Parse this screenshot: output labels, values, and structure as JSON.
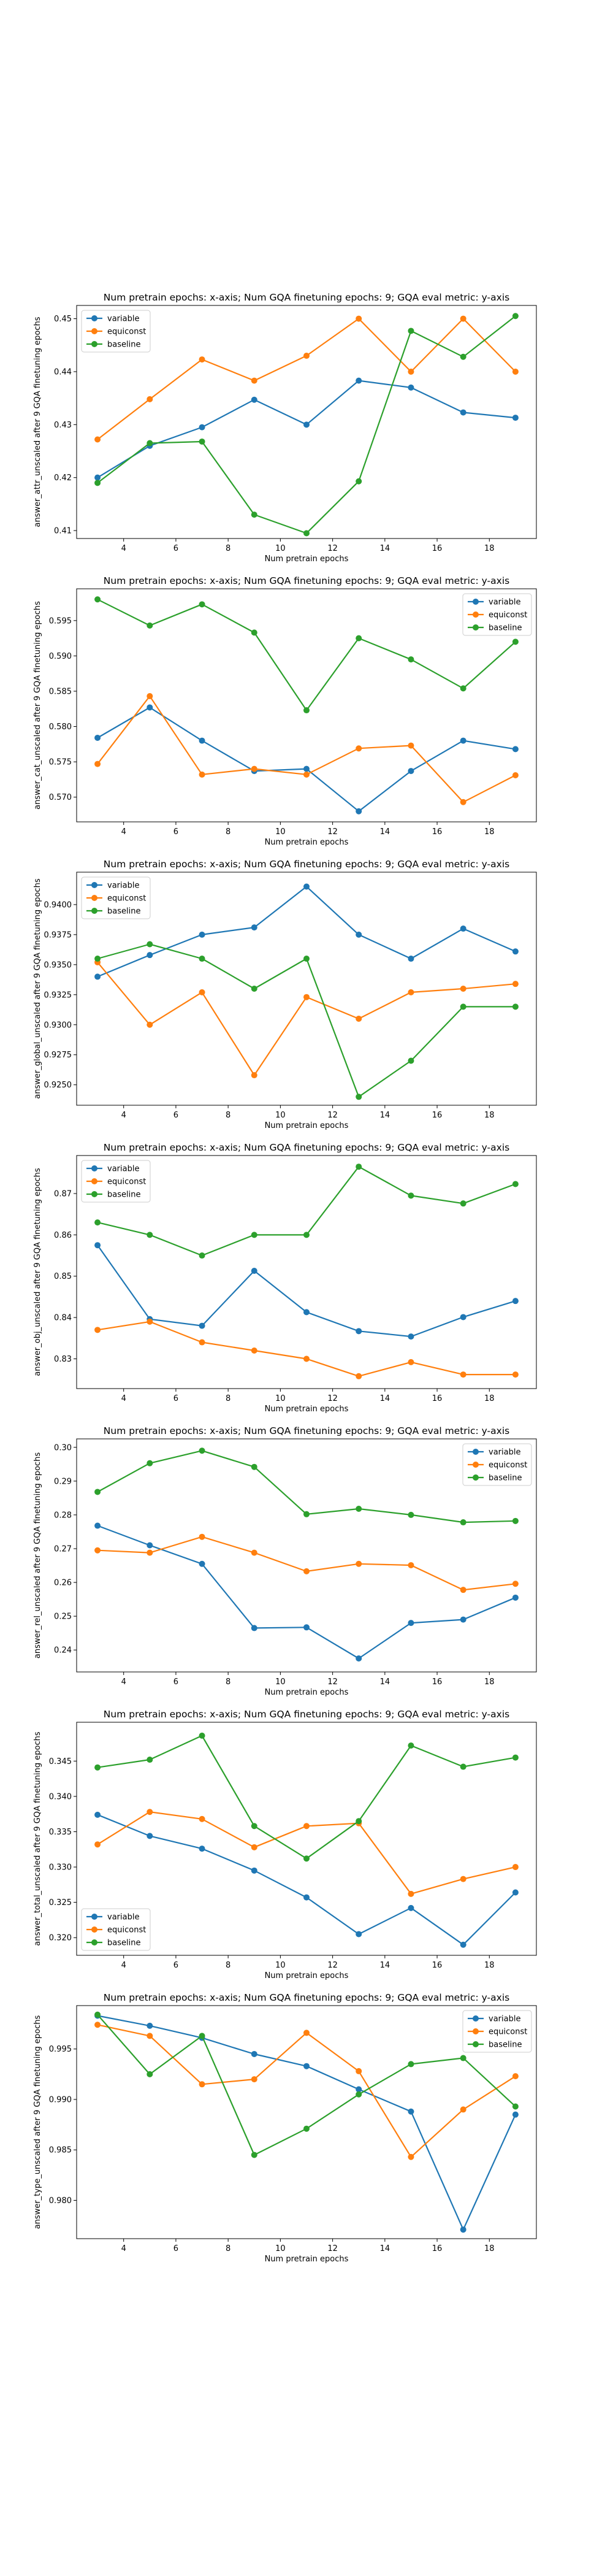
{
  "figure": {
    "background": "#ffffff"
  },
  "chart_data": [
    {
      "type": "line",
      "title": "Num pretrain epochs: x-axis; Num GQA finetuning epochs: 9; GQA eval metric: y-axis",
      "xlabel": "Num pretrain epochs",
      "ylabel": "answer_attr_unscaled after 9 GQA finetuning epochs",
      "x": [
        3,
        5,
        7,
        9,
        11,
        13,
        15,
        17,
        19
      ],
      "xlim": [
        2.2,
        19.8
      ],
      "ylim": [
        0.4085,
        0.4525
      ],
      "xticks": [
        4,
        6,
        8,
        10,
        12,
        14,
        16,
        18
      ],
      "yticks": [
        0.41,
        0.42,
        0.43,
        0.44,
        0.45
      ],
      "ytick_labels": [
        "0.41",
        "0.42",
        "0.43",
        "0.44",
        "0.45"
      ],
      "legend_loc": "upper-left",
      "series": [
        {
          "name": "variable",
          "color": "#1f77b4",
          "values": [
            0.42,
            0.426,
            0.4295,
            0.4347,
            0.43,
            0.4383,
            0.437,
            0.4323,
            0.4313
          ]
        },
        {
          "name": "equiconst",
          "color": "#ff7f0e",
          "values": [
            0.4272,
            0.4348,
            0.4423,
            0.4383,
            0.443,
            0.45,
            0.44,
            0.45,
            0.44
          ]
        },
        {
          "name": "baseline",
          "color": "#2ca02c",
          "values": [
            0.419,
            0.4265,
            0.4268,
            0.413,
            0.4095,
            0.4193,
            0.4477,
            0.4428,
            0.4505
          ]
        }
      ]
    },
    {
      "type": "line",
      "title": "Num pretrain epochs: x-axis; Num GQA finetuning epochs: 9; GQA eval metric: y-axis",
      "xlabel": "Num pretrain epochs",
      "ylabel": "answer_cat_unscaled after 9 GQA finetuning epochs",
      "x": [
        3,
        5,
        7,
        9,
        11,
        13,
        15,
        17,
        19
      ],
      "xlim": [
        2.2,
        19.8
      ],
      "ylim": [
        0.5665,
        0.5995
      ],
      "xticks": [
        4,
        6,
        8,
        10,
        12,
        14,
        16,
        18
      ],
      "yticks": [
        0.57,
        0.575,
        0.58,
        0.585,
        0.59,
        0.595
      ],
      "ytick_labels": [
        "0.570",
        "0.575",
        "0.580",
        "0.585",
        "0.590",
        "0.595"
      ],
      "legend_loc": "upper-right",
      "series": [
        {
          "name": "variable",
          "color": "#1f77b4",
          "values": [
            0.5784,
            0.5827,
            0.578,
            0.5737,
            0.574,
            0.568,
            0.5737,
            0.578,
            0.5768
          ]
        },
        {
          "name": "equiconst",
          "color": "#ff7f0e",
          "values": [
            0.5747,
            0.5843,
            0.5732,
            0.574,
            0.5732,
            0.5769,
            0.5773,
            0.5693,
            0.5731
          ]
        },
        {
          "name": "baseline",
          "color": "#2ca02c",
          "values": [
            0.598,
            0.5943,
            0.5973,
            0.5933,
            0.5823,
            0.5925,
            0.5895,
            0.5854,
            0.592
          ]
        }
      ]
    },
    {
      "type": "line",
      "title": "Num pretrain epochs: x-axis; Num GQA finetuning epochs: 9; GQA eval metric: y-axis",
      "xlabel": "Num pretrain epochs",
      "ylabel": "answer_global_unscaled after 9 GQA finetuning epochs",
      "x": [
        3,
        5,
        7,
        9,
        11,
        13,
        15,
        17,
        19
      ],
      "xlim": [
        2.2,
        19.8
      ],
      "ylim": [
        0.9233,
        0.9427
      ],
      "xticks": [
        4,
        6,
        8,
        10,
        12,
        14,
        16,
        18
      ],
      "yticks": [
        0.925,
        0.9275,
        0.93,
        0.9325,
        0.935,
        0.9375,
        0.94
      ],
      "ytick_labels": [
        "0.9250",
        "0.9275",
        "0.9300",
        "0.9325",
        "0.9350",
        "0.9375",
        "0.9400"
      ],
      "legend_loc": "upper-left",
      "series": [
        {
          "name": "variable",
          "color": "#1f77b4",
          "values": [
            0.934,
            0.9358,
            0.9375,
            0.9381,
            0.9415,
            0.9375,
            0.9355,
            0.938,
            0.9361
          ]
        },
        {
          "name": "equiconst",
          "color": "#ff7f0e",
          "values": [
            0.9352,
            0.93,
            0.9327,
            0.9258,
            0.9323,
            0.9305,
            0.9327,
            0.933,
            0.9334
          ]
        },
        {
          "name": "baseline",
          "color": "#2ca02c",
          "values": [
            0.9355,
            0.9367,
            0.9355,
            0.933,
            0.9355,
            0.924,
            0.927,
            0.9315,
            0.9315
          ]
        }
      ]
    },
    {
      "type": "line",
      "title": "Num pretrain epochs: x-axis; Num GQA finetuning epochs: 9; GQA eval metric: y-axis",
      "xlabel": "Num pretrain epochs",
      "ylabel": "answer_obj_unscaled after 9 GQA finetuning epochs",
      "x": [
        3,
        5,
        7,
        9,
        11,
        13,
        15,
        17,
        19
      ],
      "xlim": [
        2.2,
        19.8
      ],
      "ylim": [
        0.8228,
        0.8792
      ],
      "xticks": [
        4,
        6,
        8,
        10,
        12,
        14,
        16,
        18
      ],
      "yticks": [
        0.83,
        0.84,
        0.85,
        0.86,
        0.87
      ],
      "ytick_labels": [
        "0.83",
        "0.84",
        "0.85",
        "0.86",
        "0.87"
      ],
      "legend_loc": "upper-left",
      "series": [
        {
          "name": "variable",
          "color": "#1f77b4",
          "values": [
            0.8575,
            0.8396,
            0.838,
            0.8513,
            0.8413,
            0.8367,
            0.8354,
            0.8401,
            0.844
          ]
        },
        {
          "name": "equiconst",
          "color": "#ff7f0e",
          "values": [
            0.837,
            0.839,
            0.834,
            0.832,
            0.83,
            0.8258,
            0.8292,
            0.8262,
            0.8262
          ]
        },
        {
          "name": "baseline",
          "color": "#2ca02c",
          "values": [
            0.863,
            0.86,
            0.855,
            0.86,
            0.86,
            0.8765,
            0.8695,
            0.8676,
            0.8723
          ]
        }
      ]
    },
    {
      "type": "line",
      "title": "Num pretrain epochs: x-axis; Num GQA finetuning epochs: 9; GQA eval metric: y-axis",
      "xlabel": "Num pretrain epochs",
      "ylabel": "answer_rel_unscaled after 9 GQA finetuning epochs",
      "x": [
        3,
        5,
        7,
        9,
        11,
        13,
        15,
        17,
        19
      ],
      "xlim": [
        2.2,
        19.8
      ],
      "ylim": [
        0.2335,
        0.3025
      ],
      "xticks": [
        4,
        6,
        8,
        10,
        12,
        14,
        16,
        18
      ],
      "yticks": [
        0.24,
        0.25,
        0.26,
        0.27,
        0.28,
        0.29,
        0.3
      ],
      "ytick_labels": [
        "0.24",
        "0.25",
        "0.26",
        "0.27",
        "0.28",
        "0.29",
        "0.30"
      ],
      "legend_loc": "upper-right",
      "series": [
        {
          "name": "variable",
          "color": "#1f77b4",
          "values": [
            0.2768,
            0.271,
            0.2655,
            0.2465,
            0.2467,
            0.2375,
            0.248,
            0.249,
            0.2555
          ]
        },
        {
          "name": "equiconst",
          "color": "#ff7f0e",
          "values": [
            0.2695,
            0.2688,
            0.2735,
            0.2688,
            0.2633,
            0.2655,
            0.2651,
            0.2578,
            0.2596
          ]
        },
        {
          "name": "baseline",
          "color": "#2ca02c",
          "values": [
            0.2868,
            0.2953,
            0.299,
            0.2942,
            0.2802,
            0.2818,
            0.28,
            0.2778,
            0.2782
          ]
        }
      ]
    },
    {
      "type": "line",
      "title": "Num pretrain epochs: x-axis; Num GQA finetuning epochs: 9; GQA eval metric: y-axis",
      "xlabel": "Num pretrain epochs",
      "ylabel": "answer_total_unscaled after 9 GQA finetuning epochs",
      "x": [
        3,
        5,
        7,
        9,
        11,
        13,
        15,
        17,
        19
      ],
      "xlim": [
        2.2,
        19.8
      ],
      "ylim": [
        0.3175,
        0.3505
      ],
      "xticks": [
        4,
        6,
        8,
        10,
        12,
        14,
        16,
        18
      ],
      "yticks": [
        0.32,
        0.325,
        0.33,
        0.335,
        0.34,
        0.345
      ],
      "ytick_labels": [
        "0.320",
        "0.325",
        "0.330",
        "0.335",
        "0.340",
        "0.345"
      ],
      "legend_loc": "lower-left",
      "series": [
        {
          "name": "variable",
          "color": "#1f77b4",
          "values": [
            0.3374,
            0.3344,
            0.3326,
            0.3295,
            0.3257,
            0.3205,
            0.3242,
            0.319,
            0.3264
          ]
        },
        {
          "name": "equiconst",
          "color": "#ff7f0e",
          "values": [
            0.3332,
            0.3378,
            0.3368,
            0.3328,
            0.3358,
            0.3362,
            0.3262,
            0.3283,
            0.33
          ]
        },
        {
          "name": "baseline",
          "color": "#2ca02c",
          "values": [
            0.3441,
            0.3452,
            0.3486,
            0.3358,
            0.3312,
            0.3365,
            0.3472,
            0.3442,
            0.3455
          ]
        }
      ]
    },
    {
      "type": "line",
      "title": "Num pretrain epochs: x-axis; Num GQA finetuning epochs: 9; GQA eval metric: y-axis",
      "xlabel": "Num pretrain epochs",
      "ylabel": "answer_type_unscaled after 9 GQA finetuning epochs",
      "x": [
        3,
        5,
        7,
        9,
        11,
        13,
        15,
        17,
        19
      ],
      "xlim": [
        2.2,
        19.8
      ],
      "ylim": [
        0.9762,
        0.9993
      ],
      "xticks": [
        4,
        6,
        8,
        10,
        12,
        14,
        16,
        18
      ],
      "yticks": [
        0.98,
        0.985,
        0.99,
        0.995
      ],
      "ytick_labels": [
        "0.980",
        "0.985",
        "0.990",
        "0.995"
      ],
      "legend_loc": "upper-right",
      "series": [
        {
          "name": "variable",
          "color": "#1f77b4",
          "values": [
            0.9983,
            0.9973,
            0.9961,
            0.9945,
            0.9933,
            0.991,
            0.9888,
            0.9771,
            0.9885
          ]
        },
        {
          "name": "equiconst",
          "color": "#ff7f0e",
          "values": [
            0.9974,
            0.9963,
            0.9915,
            0.992,
            0.9966,
            0.9928,
            0.9843,
            0.989,
            0.9923
          ]
        },
        {
          "name": "baseline",
          "color": "#2ca02c",
          "values": [
            0.9984,
            0.9925,
            0.9963,
            0.9845,
            0.9871,
            0.9905,
            0.9935,
            0.9941,
            0.9893
          ]
        }
      ]
    }
  ]
}
